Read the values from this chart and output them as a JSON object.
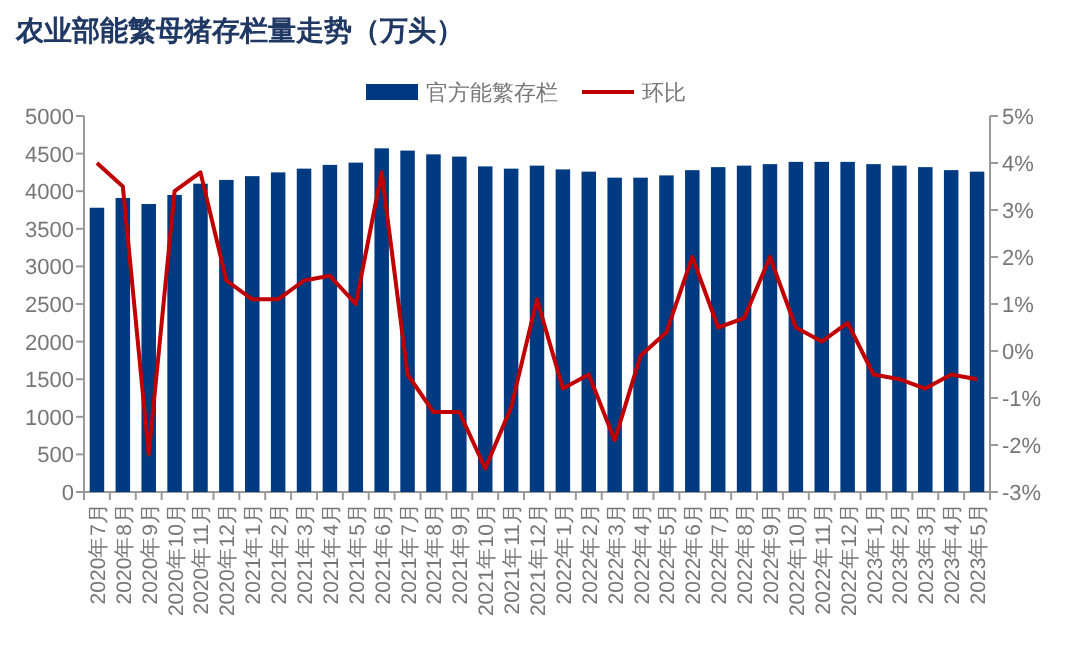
{
  "chart_data": {
    "type": "bar",
    "title": "农业部能繁母猪存栏量走势（万头）",
    "categories": [
      "2020年7月",
      "2020年8月",
      "2020年9月",
      "2020年10月",
      "2020年11月",
      "2020年12月",
      "2021年1月",
      "2021年2月",
      "2021年3月",
      "2021年4月",
      "2021年5月",
      "2021年6月",
      "2021年7月",
      "2021年8月",
      "2021年9月",
      "2021年10月",
      "2021年11月",
      "2021年12月",
      "2022年1月",
      "2022年2月",
      "2022年3月",
      "2022年4月",
      "2022年5月",
      "2022年6月",
      "2022年7月",
      "2022年8月",
      "2022年9月",
      "2022年10月",
      "2022年11月",
      "2022年12月",
      "2023年1月",
      "2023年2月",
      "2023年3月",
      "2023年4月",
      "2023年5月"
    ],
    "series": [
      {
        "name": "官方能繁存栏",
        "color": "#003a80",
        "values": [
          3780,
          3910,
          3830,
          3950,
          4100,
          4150,
          4200,
          4250,
          4300,
          4350,
          4380,
          4570,
          4540,
          4490,
          4460,
          4330,
          4300,
          4340,
          4290,
          4260,
          4180,
          4180,
          4210,
          4280,
          4320,
          4340,
          4360,
          4390,
          4390,
          4390,
          4360,
          4340,
          4320,
          4280,
          4260
        ]
      },
      {
        "name": "环比",
        "type": "line",
        "axis": "y2",
        "color": "#c00000",
        "values": [
          4.0,
          3.5,
          -2.2,
          3.4,
          3.8,
          1.5,
          1.1,
          1.1,
          1.5,
          1.6,
          1.0,
          3.8,
          -0.5,
          -1.3,
          -1.3,
          -2.5,
          -1.2,
          1.1,
          -0.8,
          -0.5,
          -1.9,
          -0.1,
          0.4,
          2.0,
          0.5,
          0.7,
          2.0,
          0.5,
          0.2,
          0.6,
          -0.5,
          -0.6,
          -0.8,
          -0.5,
          -0.6
        ]
      }
    ],
    "ylim": [
      0,
      5000
    ],
    "yticks": [
      0,
      500,
      1000,
      1500,
      2000,
      2500,
      3000,
      3500,
      4000,
      4500,
      5000
    ],
    "y2lim": [
      -3,
      5
    ],
    "y2ticks": [
      {
        "value": -3,
        "label": "-3%"
      },
      {
        "value": -2,
        "label": "-2%"
      },
      {
        "value": -1,
        "label": "-1%"
      },
      {
        "value": 0,
        "label": "0%"
      },
      {
        "value": 1,
        "label": "1%"
      },
      {
        "value": 2,
        "label": "2%"
      },
      {
        "value": 3,
        "label": "3%"
      },
      {
        "value": 4,
        "label": "4%"
      },
      {
        "value": 5,
        "label": "5%"
      }
    ],
    "legend": "top"
  }
}
